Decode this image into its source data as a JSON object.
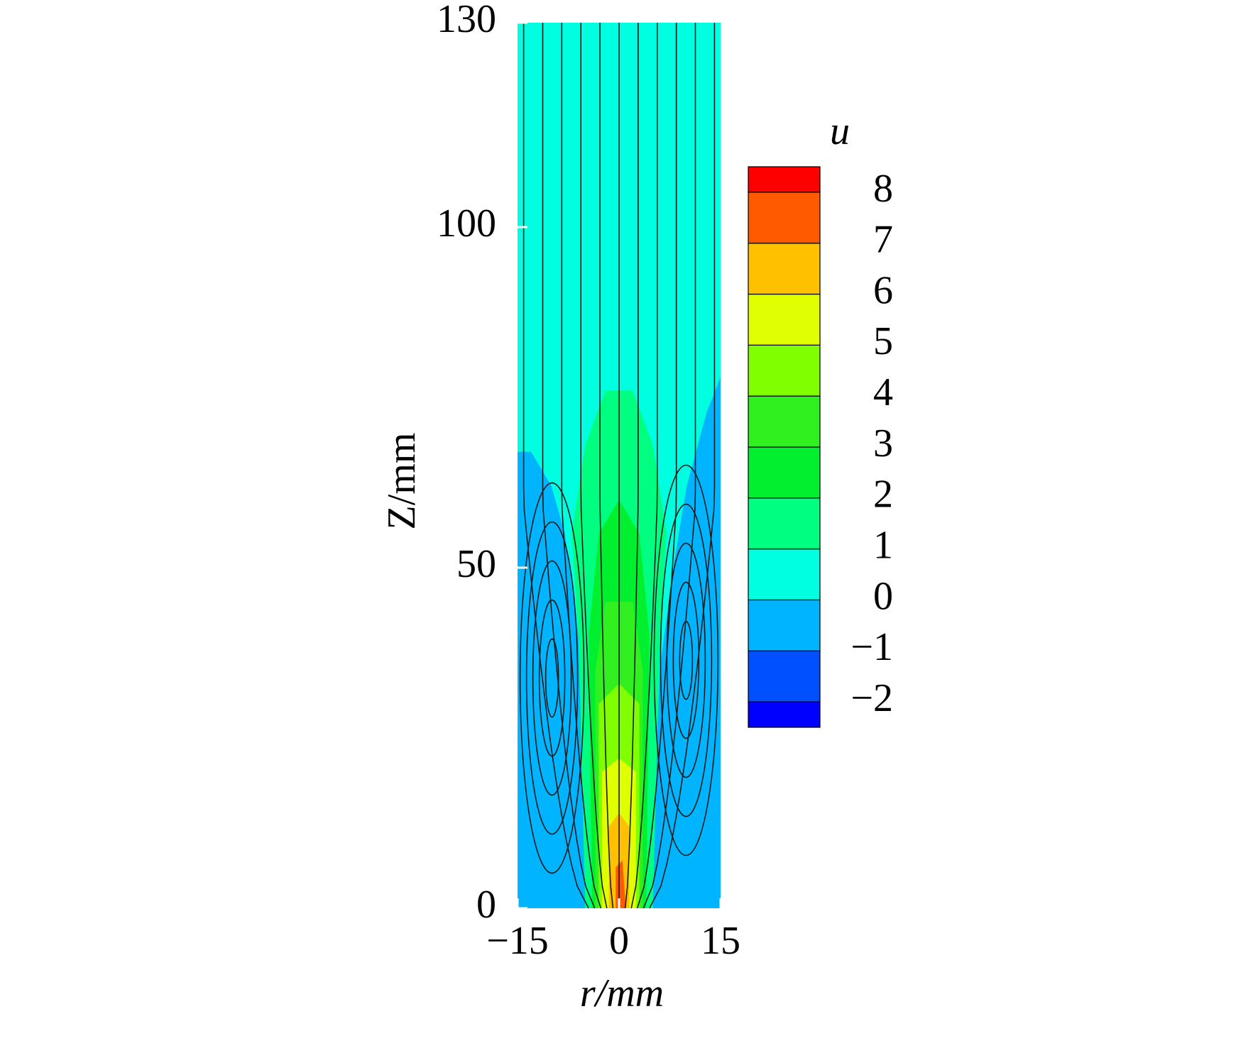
{
  "chart_data": {
    "type": "contour",
    "xlabel": "r/mm",
    "ylabel": "Z/mm",
    "xlim": [
      -15,
      15
    ],
    "ylim": [
      0,
      130
    ],
    "xticks": [
      {
        "value": -15,
        "label": "−15"
      },
      0,
      15
    ],
    "yticks": [
      0,
      50,
      100,
      130
    ],
    "colorbar": {
      "title": "u",
      "levels": [
        -2.5,
        -2,
        -1,
        0,
        1,
        2,
        3,
        4,
        5,
        6,
        7,
        8,
        8.5
      ],
      "colors": [
        "#0000ff",
        "#0050ff",
        "#00b4ff",
        "#00ffe0",
        "#00ff80",
        "#00f030",
        "#30f020",
        "#80ff00",
        "#e0ff00",
        "#ffc000",
        "#ff5a00",
        "#ff0000"
      ],
      "ticks": [
        {
          "value": -2,
          "label": "−2"
        },
        {
          "value": -1,
          "label": "−1"
        },
        0,
        1,
        2,
        3,
        4,
        5,
        6,
        7,
        8
      ]
    },
    "regions": [
      {
        "level": 0,
        "r": [
          -15,
          -15,
          15,
          15
        ],
        "z": [
          0,
          130,
          130,
          0
        ]
      },
      {
        "level": -1,
        "r": [
          -15,
          -15,
          -13,
          -10,
          -8,
          -6,
          -5,
          -5
        ],
        "z": [
          0,
          67,
          67,
          62,
          55,
          40,
          20,
          0
        ]
      },
      {
        "level": -1,
        "r": [
          15,
          15,
          13,
          10,
          8,
          6,
          5,
          5
        ],
        "z": [
          0,
          78,
          73,
          62,
          50,
          35,
          10,
          0
        ]
      },
      {
        "level": 1,
        "r": [
          -5,
          -6,
          -7,
          -5,
          -2,
          2,
          5,
          7,
          6,
          5
        ],
        "z": [
          0,
          40,
          55,
          68,
          76,
          76,
          68,
          55,
          40,
          0
        ]
      },
      {
        "level": 2,
        "r": [
          -4,
          -4.5,
          -3,
          0,
          3,
          4.5,
          4
        ],
        "z": [
          0,
          40,
          55,
          60,
          55,
          40,
          0
        ]
      },
      {
        "level": 3,
        "r": [
          -3.5,
          -3.5,
          -2,
          2,
          3.5,
          3.5
        ],
        "z": [
          0,
          35,
          45,
          45,
          35,
          0
        ]
      },
      {
        "level": 4,
        "r": [
          -3,
          -3,
          0,
          3,
          3
        ],
        "z": [
          0,
          30,
          33,
          30,
          0
        ]
      },
      {
        "level": 5,
        "r": [
          -2.5,
          -2.5,
          0,
          2.5,
          2.5
        ],
        "z": [
          0,
          20,
          22,
          20,
          0
        ]
      },
      {
        "level": 6,
        "r": [
          -1.5,
          -1.5,
          0,
          1.5,
          1.5
        ],
        "z": [
          0,
          12,
          14,
          12,
          0
        ]
      },
      {
        "level": 7,
        "r": [
          -0.5,
          -0.5,
          0.5,
          1
        ],
        "z": [
          0,
          6,
          7,
          0
        ]
      }
    ]
  }
}
